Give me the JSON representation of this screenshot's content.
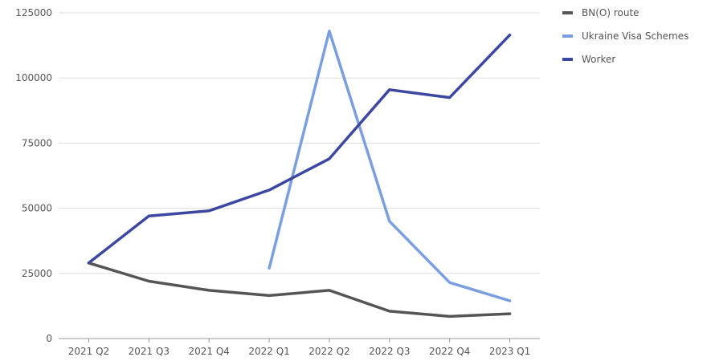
{
  "chart_data": {
    "type": "line",
    "categories": [
      "2021 Q2",
      "2021 Q3",
      "2021 Q4",
      "2022 Q1",
      "2022 Q2",
      "2022 Q3",
      "2022 Q4",
      "2023 Q1"
    ],
    "ylim": [
      0,
      125000
    ],
    "yticks": [
      0,
      25000,
      50000,
      75000,
      100000,
      125000
    ],
    "ytick_labels": [
      "0",
      "25000",
      "50000",
      "75000",
      "100000",
      "125000"
    ],
    "grid": true,
    "legend_position": "top-right",
    "series": [
      {
        "name": "BN(O) route",
        "color": "#555555",
        "values": [
          29000,
          22000,
          18500,
          16500,
          18500,
          10500,
          8500,
          9500
        ]
      },
      {
        "name": "Ukraine Visa Schemes",
        "color": "#7b9ee0",
        "values": [
          null,
          null,
          null,
          27000,
          118000,
          45000,
          21500,
          14500
        ]
      },
      {
        "name": "Worker",
        "color": "#3b47a0",
        "values": [
          29000,
          47000,
          49000,
          57000,
          69000,
          95500,
          92500,
          116500
        ]
      }
    ]
  }
}
